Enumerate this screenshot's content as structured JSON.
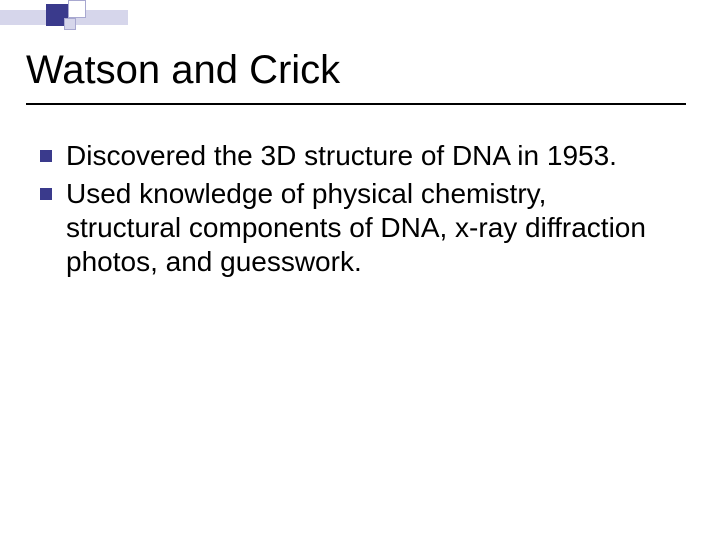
{
  "slide": {
    "title": "Watson and Crick",
    "title_fontsize": 40,
    "title_color": "#000000",
    "rule_color": "#000000",
    "background_color": "#ffffff",
    "decoration": {
      "bar_color": "#d6d6eb",
      "square_dark": "#3a3a8c",
      "square_light": "#ffffff",
      "square_border": "#a8a8d0"
    },
    "bullets": [
      {
        "text": "Discovered the 3D structure of DNA in 1953."
      },
      {
        "text": "Used knowledge of physical chemistry, structural components of DNA, x-ray diffraction photos, and guesswork."
      }
    ],
    "bullet_marker_color": "#3a3a8c",
    "bullet_fontsize": 28,
    "bullet_text_color": "#000000"
  }
}
